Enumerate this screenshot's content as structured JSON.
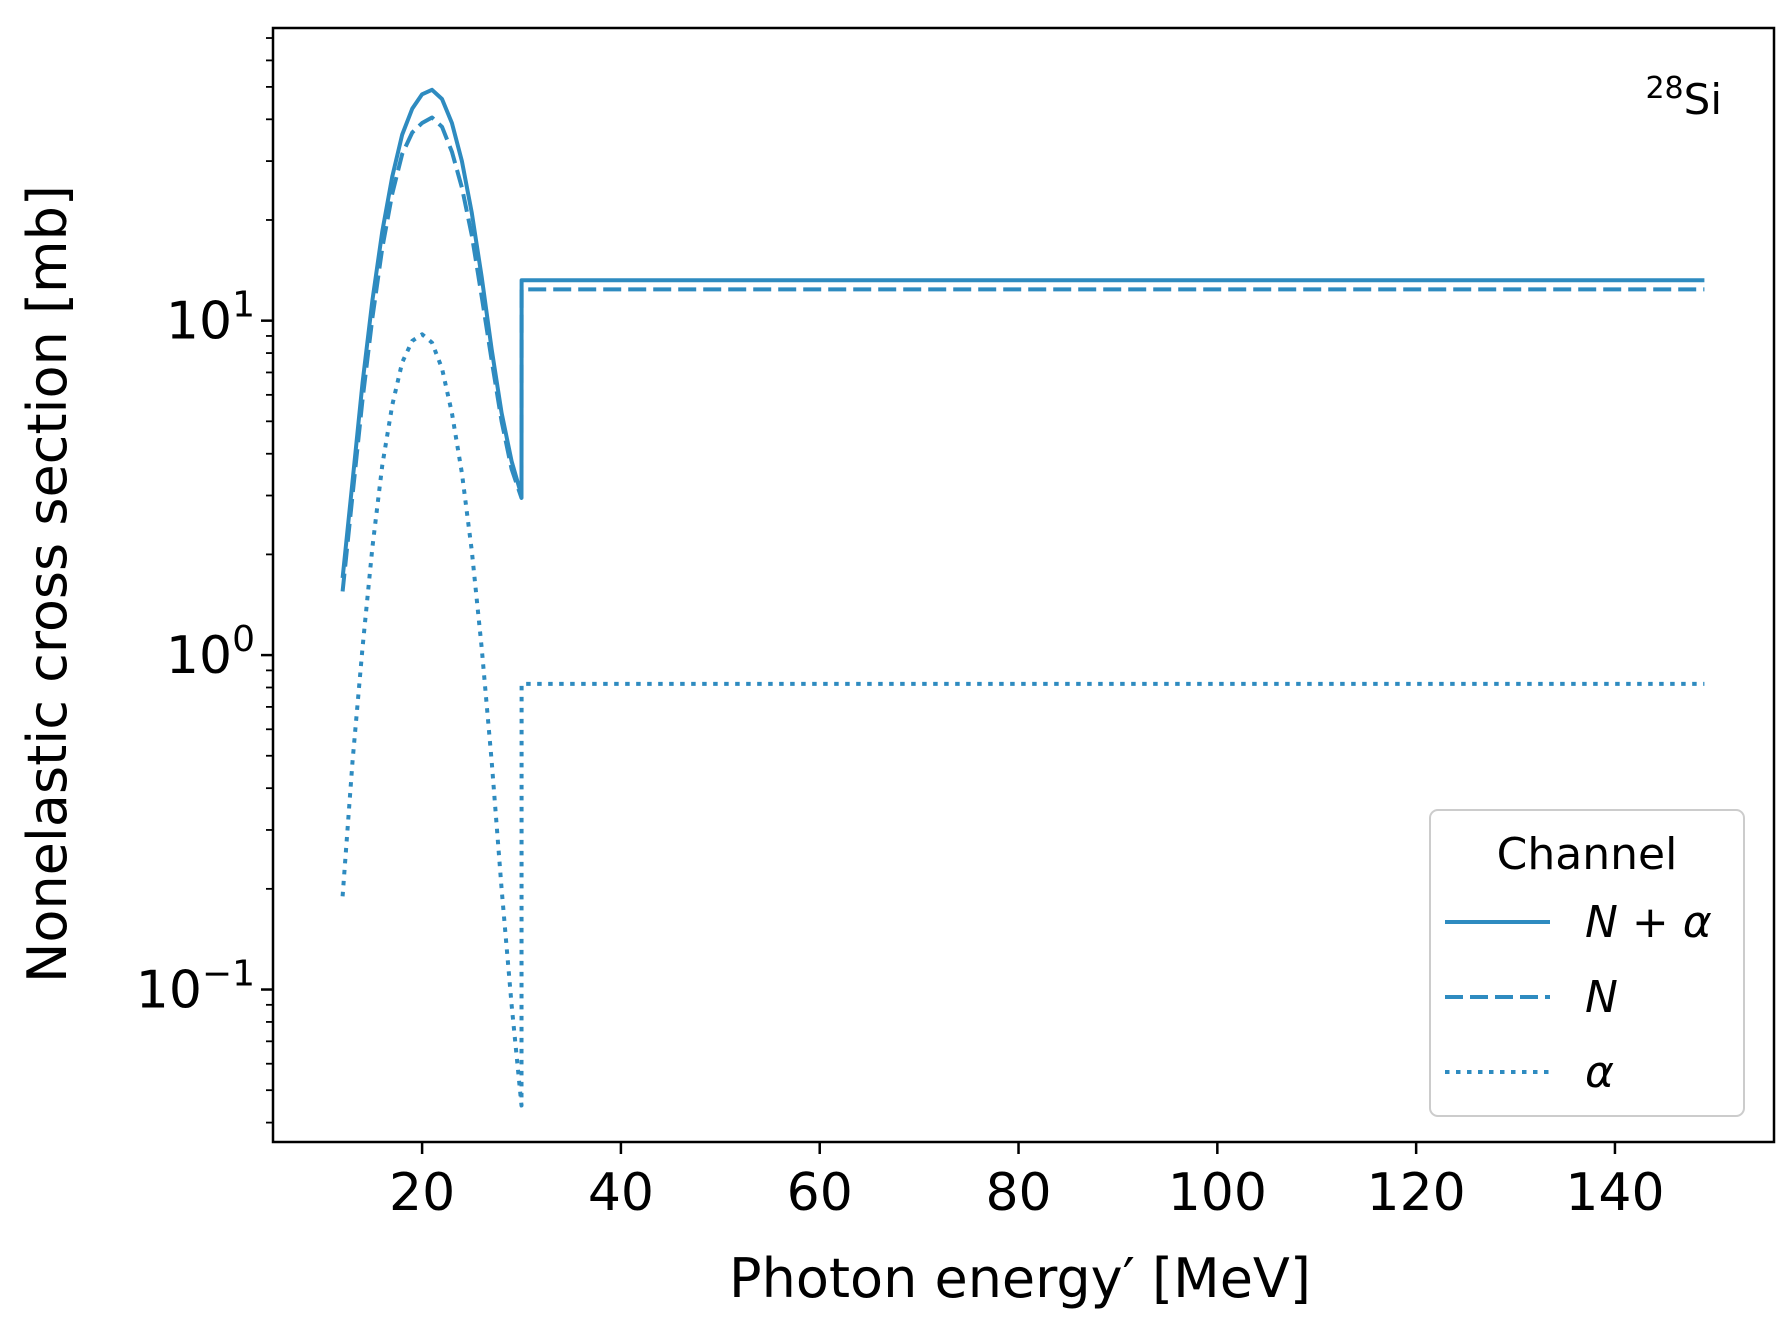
{
  "chart_data": {
    "type": "line",
    "xlabel": "Photon energy′ [MeV]",
    "ylabel": "Nonelastic cross section [mb]",
    "annotation": {
      "superscript": "28",
      "text": "Si"
    },
    "xlim": [
      5,
      156
    ],
    "ylim": [
      0.035,
      75
    ],
    "yscale": "log",
    "grid": false,
    "x_ticks": [
      {
        "value": 20,
        "label": "20"
      },
      {
        "value": 40,
        "label": "40"
      },
      {
        "value": 60,
        "label": "60"
      },
      {
        "value": 80,
        "label": "80"
      },
      {
        "value": 100,
        "label": "100"
      },
      {
        "value": 120,
        "label": "120"
      },
      {
        "value": 140,
        "label": "140"
      }
    ],
    "y_ticks": [
      {
        "value": 0.1,
        "base": "10",
        "exp": "−1"
      },
      {
        "value": 1,
        "base": "10",
        "exp": "0"
      },
      {
        "value": 10,
        "base": "10",
        "exp": "1"
      }
    ],
    "legend": {
      "title": "Channel",
      "position": "lower right"
    },
    "color": "#2e8bc0",
    "series": [
      {
        "name": "N + α",
        "style": "solid",
        "x": [
          12,
          13,
          14,
          15,
          16,
          17,
          18,
          19,
          20,
          21,
          22,
          23,
          24,
          25,
          26,
          27,
          28,
          29,
          30,
          30.01,
          149
        ],
        "y": [
          1.7,
          3.3,
          6.5,
          11.5,
          18.5,
          27,
          36,
          43,
          47.5,
          49,
          46,
          39,
          30,
          21,
          13.5,
          8.2,
          5.3,
          3.8,
          3.0,
          13.2,
          13.2
        ]
      },
      {
        "name": "N",
        "style": "dashed",
        "x": [
          12,
          13,
          14,
          15,
          16,
          17,
          18,
          19,
          20,
          21,
          22,
          23,
          24,
          25,
          26,
          27,
          28,
          29,
          30,
          30.01,
          149
        ],
        "y": [
          1.55,
          3.0,
          5.8,
          10.2,
          16.5,
          24,
          31.5,
          36.5,
          39,
          40.5,
          38,
          32,
          25,
          18,
          11.8,
          7.6,
          5.0,
          3.6,
          2.95,
          12.4,
          12.4
        ]
      },
      {
        "name": "α",
        "style": "dotted",
        "x": [
          12,
          13,
          14,
          15,
          16,
          17,
          18,
          19,
          20,
          21,
          22,
          23,
          24,
          25,
          26,
          27,
          28,
          29,
          30,
          30.01,
          149
        ],
        "y": [
          0.19,
          0.48,
          1.05,
          2.1,
          3.7,
          5.6,
          7.5,
          8.7,
          9.1,
          8.6,
          7.2,
          5.3,
          3.5,
          2.05,
          1.05,
          0.48,
          0.2,
          0.09,
          0.045,
          0.82,
          0.82
        ]
      }
    ]
  }
}
